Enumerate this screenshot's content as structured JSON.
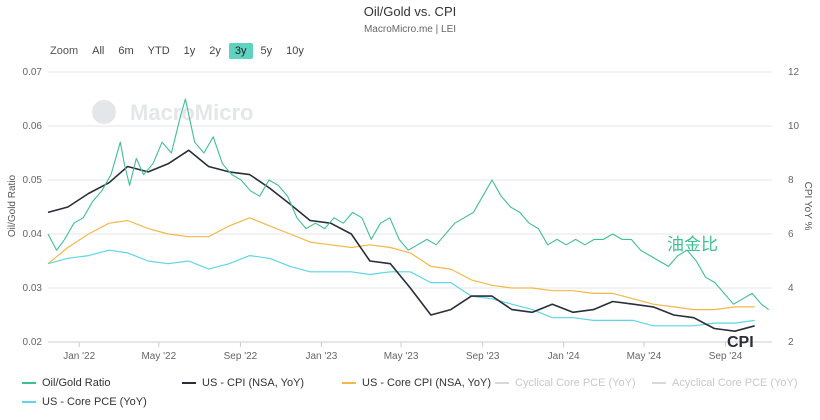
{
  "header": {
    "title": "Oil/Gold vs. CPI",
    "subtitle": "MacroMicro.me | LEI"
  },
  "range_selector": {
    "zoom_label": "Zoom",
    "buttons": [
      "All",
      "6m",
      "YTD",
      "1y",
      "2y",
      "3y",
      "5y",
      "10y"
    ],
    "active": "3y"
  },
  "watermark": "MacroMicro",
  "annotations": {
    "oil_gold": "油金比",
    "cpi": "CPI"
  },
  "colors": {
    "oil_gold": "#3fbf95",
    "cpi": "#2a2e3a",
    "core_cpi": "#f2b84b",
    "core_pce": "#5fd5e6",
    "inactive": "#d8d8d8",
    "active_button": "#5ed3c0"
  },
  "chart_data": {
    "type": "line",
    "title": "Oil/Gold vs. CPI",
    "subtitle": "MacroMicro.me | LEI",
    "xlabel": "",
    "ylabel_left": "Oil/Gold Ratio",
    "ylabel_right": "CPI YoY %",
    "ylim_left": [
      0.02,
      0.07
    ],
    "ylim_right": [
      2,
      12
    ],
    "yticks_left": [
      "0.02",
      "0.03",
      "0.04",
      "0.05",
      "0.06",
      "0.07"
    ],
    "yticks_right": [
      "2",
      "4",
      "6",
      "8",
      "10",
      "12"
    ],
    "xlim": [
      "2021-11-15",
      "2024-11-10"
    ],
    "xticks": [
      {
        "date": "2022-01-01",
        "label": "Jan '22"
      },
      {
        "date": "2022-05-01",
        "label": "May '22"
      },
      {
        "date": "2022-09-01",
        "label": "Sep '22"
      },
      {
        "date": "2023-01-01",
        "label": "Jan '23"
      },
      {
        "date": "2023-05-01",
        "label": "May '23"
      },
      {
        "date": "2023-09-01",
        "label": "Sep '23"
      },
      {
        "date": "2024-01-01",
        "label": "Jan '24"
      },
      {
        "date": "2024-05-01",
        "label": "May '24"
      },
      {
        "date": "2024-09-01",
        "label": "Sep '24"
      }
    ],
    "grid": true,
    "legend_position": "bottom",
    "series": [
      {
        "name": "Oil/Gold Ratio",
        "axis": "left",
        "color": "#3fbf95",
        "points": [
          [
            "2021-11-15",
            0.04
          ],
          [
            "2021-11-28",
            0.037
          ],
          [
            "2021-12-10",
            0.039
          ],
          [
            "2021-12-24",
            0.042
          ],
          [
            "2022-01-07",
            0.043
          ],
          [
            "2022-01-21",
            0.046
          ],
          [
            "2022-02-04",
            0.048
          ],
          [
            "2022-02-18",
            0.051
          ],
          [
            "2022-03-04",
            0.057
          ],
          [
            "2022-03-10",
            0.053
          ],
          [
            "2022-03-18",
            0.049
          ],
          [
            "2022-03-28",
            0.054
          ],
          [
            "2022-04-08",
            0.051
          ],
          [
            "2022-04-22",
            0.053
          ],
          [
            "2022-05-06",
            0.057
          ],
          [
            "2022-05-20",
            0.055
          ],
          [
            "2022-06-03",
            0.062
          ],
          [
            "2022-06-10",
            0.065
          ],
          [
            "2022-06-17",
            0.061
          ],
          [
            "2022-06-24",
            0.057
          ],
          [
            "2022-07-08",
            0.055
          ],
          [
            "2022-07-22",
            0.058
          ],
          [
            "2022-08-05",
            0.053
          ],
          [
            "2022-08-19",
            0.051
          ],
          [
            "2022-09-02",
            0.05
          ],
          [
            "2022-09-16",
            0.048
          ],
          [
            "2022-09-30",
            0.047
          ],
          [
            "2022-10-14",
            0.05
          ],
          [
            "2022-10-28",
            0.049
          ],
          [
            "2022-11-11",
            0.047
          ],
          [
            "2022-11-25",
            0.043
          ],
          [
            "2022-12-09",
            0.041
          ],
          [
            "2022-12-23",
            0.042
          ],
          [
            "2023-01-06",
            0.041
          ],
          [
            "2023-01-20",
            0.043
          ],
          [
            "2023-02-03",
            0.042
          ],
          [
            "2023-02-17",
            0.044
          ],
          [
            "2023-03-03",
            0.043
          ],
          [
            "2023-03-17",
            0.039
          ],
          [
            "2023-03-31",
            0.042
          ],
          [
            "2023-04-14",
            0.043
          ],
          [
            "2023-04-28",
            0.039
          ],
          [
            "2023-05-12",
            0.037
          ],
          [
            "2023-05-26",
            0.038
          ],
          [
            "2023-06-09",
            0.039
          ],
          [
            "2023-06-23",
            0.038
          ],
          [
            "2023-07-07",
            0.04
          ],
          [
            "2023-07-21",
            0.042
          ],
          [
            "2023-08-04",
            0.043
          ],
          [
            "2023-08-18",
            0.044
          ],
          [
            "2023-09-01",
            0.047
          ],
          [
            "2023-09-15",
            0.05
          ],
          [
            "2023-09-29",
            0.047
          ],
          [
            "2023-10-13",
            0.045
          ],
          [
            "2023-10-27",
            0.044
          ],
          [
            "2023-11-10",
            0.042
          ],
          [
            "2023-11-24",
            0.041
          ],
          [
            "2023-12-08",
            0.038
          ],
          [
            "2023-12-22",
            0.039
          ],
          [
            "2024-01-05",
            0.038
          ],
          [
            "2024-01-19",
            0.039
          ],
          [
            "2024-02-02",
            0.038
          ],
          [
            "2024-02-16",
            0.039
          ],
          [
            "2024-03-01",
            0.039
          ],
          [
            "2024-03-15",
            0.04
          ],
          [
            "2024-03-29",
            0.039
          ],
          [
            "2024-04-12",
            0.039
          ],
          [
            "2024-04-26",
            0.037
          ],
          [
            "2024-05-10",
            0.036
          ],
          [
            "2024-05-24",
            0.035
          ],
          [
            "2024-06-07",
            0.034
          ],
          [
            "2024-06-21",
            0.036
          ],
          [
            "2024-07-05",
            0.037
          ],
          [
            "2024-07-19",
            0.035
          ],
          [
            "2024-08-02",
            0.032
          ],
          [
            "2024-08-16",
            0.031
          ],
          [
            "2024-08-30",
            0.029
          ],
          [
            "2024-09-13",
            0.027
          ],
          [
            "2024-09-27",
            0.028
          ],
          [
            "2024-10-11",
            0.029
          ],
          [
            "2024-10-25",
            0.027
          ],
          [
            "2024-11-05",
            0.026
          ]
        ]
      },
      {
        "name": "US - CPI (NSA, YoY)",
        "axis": "right",
        "color": "#2a2e3a",
        "points": [
          [
            "2021-11-15",
            6.8
          ],
          [
            "2021-12-15",
            7.0
          ],
          [
            "2022-01-15",
            7.5
          ],
          [
            "2022-02-15",
            7.9
          ],
          [
            "2022-03-15",
            8.5
          ],
          [
            "2022-04-15",
            8.3
          ],
          [
            "2022-05-15",
            8.6
          ],
          [
            "2022-06-15",
            9.1
          ],
          [
            "2022-07-15",
            8.5
          ],
          [
            "2022-08-15",
            8.3
          ],
          [
            "2022-09-15",
            8.2
          ],
          [
            "2022-10-15",
            7.7
          ],
          [
            "2022-11-15",
            7.1
          ],
          [
            "2022-12-15",
            6.5
          ],
          [
            "2023-01-15",
            6.4
          ],
          [
            "2023-02-15",
            6.0
          ],
          [
            "2023-03-15",
            5.0
          ],
          [
            "2023-04-15",
            4.9
          ],
          [
            "2023-05-15",
            4.0
          ],
          [
            "2023-06-15",
            3.0
          ],
          [
            "2023-07-15",
            3.2
          ],
          [
            "2023-08-15",
            3.7
          ],
          [
            "2023-09-15",
            3.7
          ],
          [
            "2023-10-15",
            3.2
          ],
          [
            "2023-11-15",
            3.1
          ],
          [
            "2023-12-15",
            3.4
          ],
          [
            "2024-01-15",
            3.1
          ],
          [
            "2024-02-15",
            3.2
          ],
          [
            "2024-03-15",
            3.5
          ],
          [
            "2024-04-15",
            3.4
          ],
          [
            "2024-05-15",
            3.3
          ],
          [
            "2024-06-15",
            3.0
          ],
          [
            "2024-07-15",
            2.9
          ],
          [
            "2024-08-15",
            2.5
          ],
          [
            "2024-09-15",
            2.4
          ],
          [
            "2024-10-15",
            2.6
          ]
        ]
      },
      {
        "name": "US - Core CPI (NSA, YoY)",
        "axis": "right",
        "color": "#f2b84b",
        "points": [
          [
            "2021-11-15",
            4.9
          ],
          [
            "2021-12-15",
            5.5
          ],
          [
            "2022-01-15",
            6.0
          ],
          [
            "2022-02-15",
            6.4
          ],
          [
            "2022-03-15",
            6.5
          ],
          [
            "2022-04-15",
            6.2
          ],
          [
            "2022-05-15",
            6.0
          ],
          [
            "2022-06-15",
            5.9
          ],
          [
            "2022-07-15",
            5.9
          ],
          [
            "2022-08-15",
            6.3
          ],
          [
            "2022-09-15",
            6.6
          ],
          [
            "2022-10-15",
            6.3
          ],
          [
            "2022-11-15",
            6.0
          ],
          [
            "2022-12-15",
            5.7
          ],
          [
            "2023-01-15",
            5.6
          ],
          [
            "2023-02-15",
            5.5
          ],
          [
            "2023-03-15",
            5.6
          ],
          [
            "2023-04-15",
            5.5
          ],
          [
            "2023-05-15",
            5.3
          ],
          [
            "2023-06-15",
            4.8
          ],
          [
            "2023-07-15",
            4.7
          ],
          [
            "2023-08-15",
            4.3
          ],
          [
            "2023-09-15",
            4.1
          ],
          [
            "2023-10-15",
            4.0
          ],
          [
            "2023-11-15",
            4.0
          ],
          [
            "2023-12-15",
            3.9
          ],
          [
            "2024-01-15",
            3.9
          ],
          [
            "2024-02-15",
            3.8
          ],
          [
            "2024-03-15",
            3.8
          ],
          [
            "2024-04-15",
            3.6
          ],
          [
            "2024-05-15",
            3.4
          ],
          [
            "2024-06-15",
            3.3
          ],
          [
            "2024-07-15",
            3.2
          ],
          [
            "2024-08-15",
            3.2
          ],
          [
            "2024-09-15",
            3.3
          ],
          [
            "2024-10-15",
            3.3
          ]
        ]
      },
      {
        "name": "Cyclical Core PCE (YoY)",
        "axis": "right",
        "color": "#d8d8d8",
        "visible": false,
        "points": []
      },
      {
        "name": "Acyclical Core PCE (YoY)",
        "axis": "right",
        "color": "#d8d8d8",
        "visible": false,
        "points": []
      },
      {
        "name": "US - Core PCE (YoY)",
        "axis": "right",
        "color": "#5fd5e6",
        "points": [
          [
            "2021-11-15",
            4.9
          ],
          [
            "2021-12-15",
            5.1
          ],
          [
            "2022-01-15",
            5.2
          ],
          [
            "2022-02-15",
            5.4
          ],
          [
            "2022-03-15",
            5.3
          ],
          [
            "2022-04-15",
            5.0
          ],
          [
            "2022-05-15",
            4.9
          ],
          [
            "2022-06-15",
            5.0
          ],
          [
            "2022-07-15",
            4.7
          ],
          [
            "2022-08-15",
            4.9
          ],
          [
            "2022-09-15",
            5.2
          ],
          [
            "2022-10-15",
            5.1
          ],
          [
            "2022-11-15",
            4.8
          ],
          [
            "2022-12-15",
            4.6
          ],
          [
            "2023-01-15",
            4.6
          ],
          [
            "2023-02-15",
            4.6
          ],
          [
            "2023-03-15",
            4.5
          ],
          [
            "2023-04-15",
            4.6
          ],
          [
            "2023-05-15",
            4.6
          ],
          [
            "2023-06-15",
            4.2
          ],
          [
            "2023-07-15",
            4.2
          ],
          [
            "2023-08-15",
            3.7
          ],
          [
            "2023-09-15",
            3.6
          ],
          [
            "2023-10-15",
            3.4
          ],
          [
            "2023-11-15",
            3.2
          ],
          [
            "2023-12-15",
            2.9
          ],
          [
            "2024-01-15",
            2.9
          ],
          [
            "2024-02-15",
            2.8
          ],
          [
            "2024-03-15",
            2.8
          ],
          [
            "2024-04-15",
            2.8
          ],
          [
            "2024-05-15",
            2.6
          ],
          [
            "2024-06-15",
            2.6
          ],
          [
            "2024-07-15",
            2.6
          ],
          [
            "2024-08-15",
            2.7
          ],
          [
            "2024-09-15",
            2.7
          ],
          [
            "2024-10-15",
            2.8
          ]
        ]
      }
    ]
  }
}
